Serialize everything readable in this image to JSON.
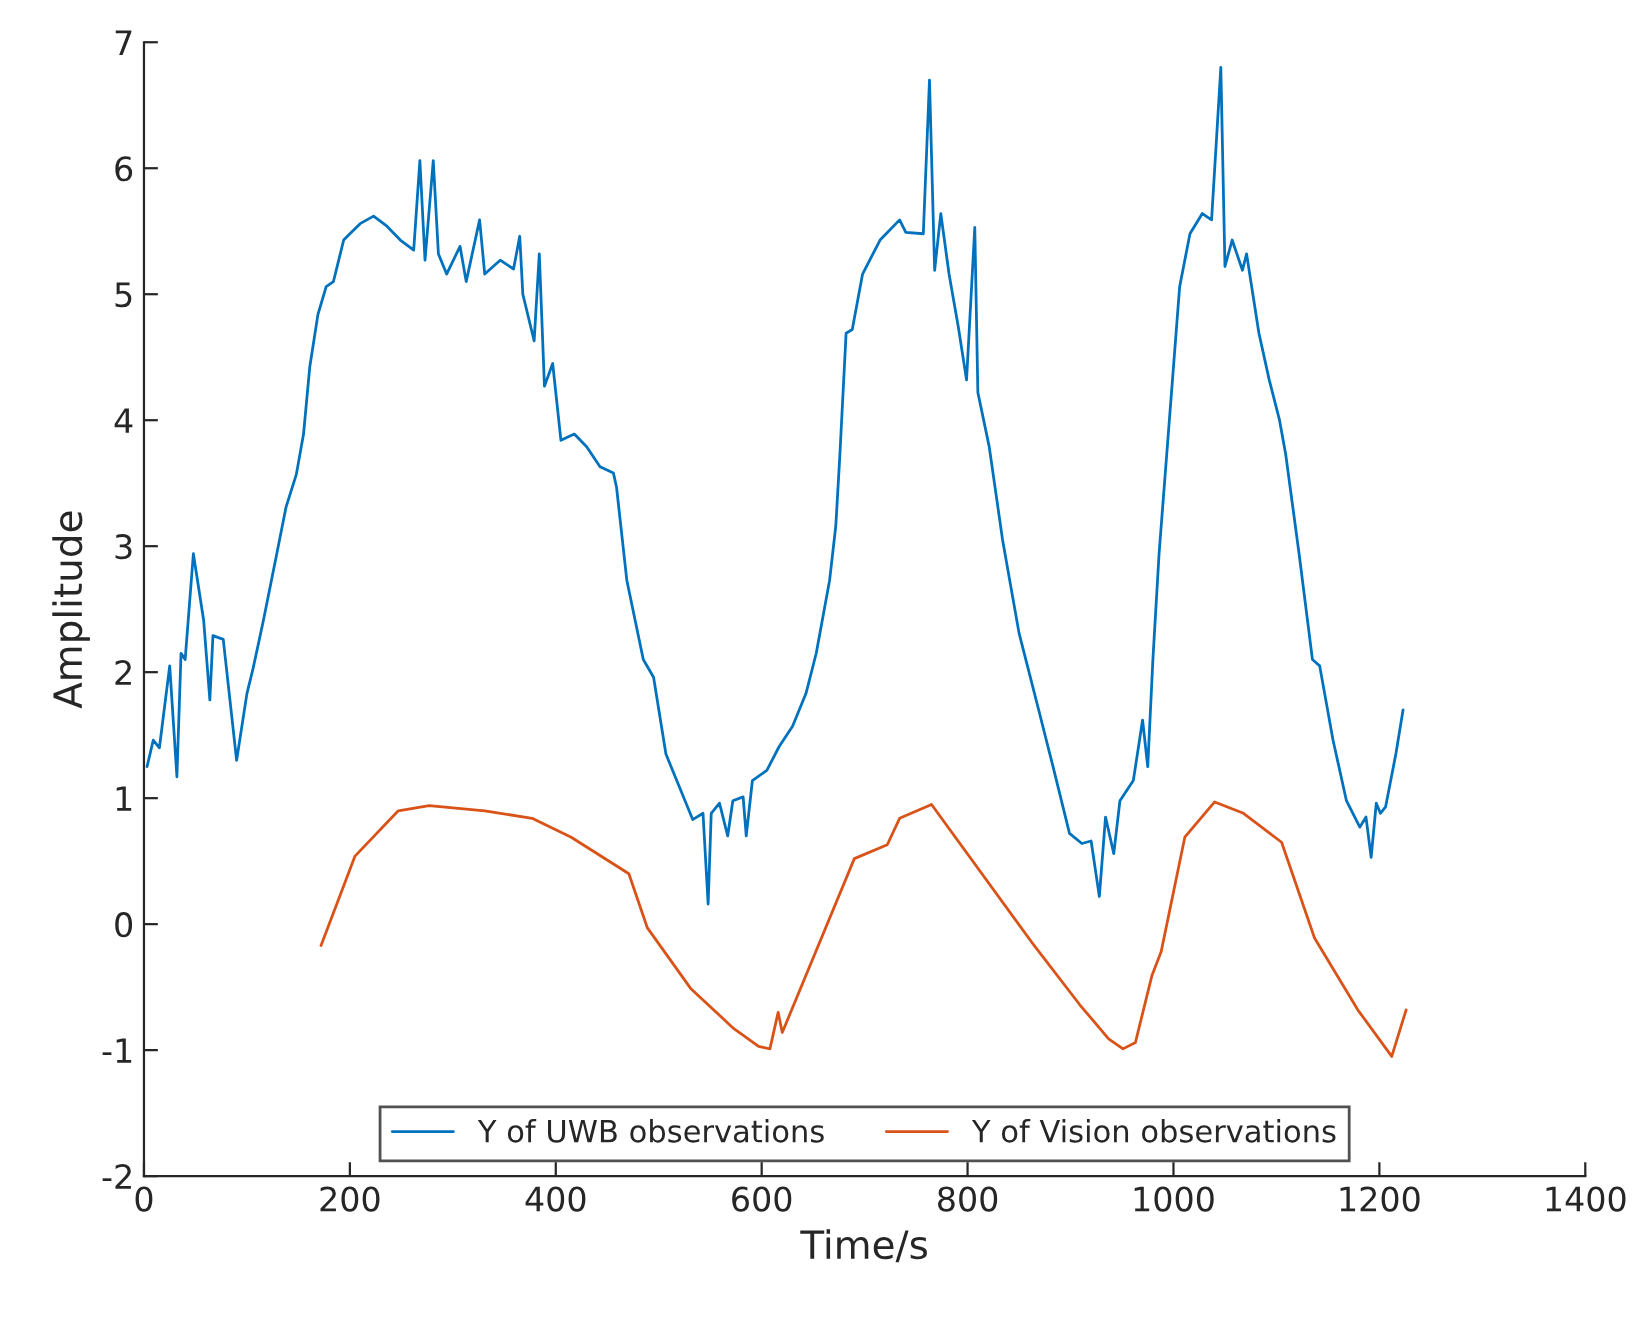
{
  "chart_data": {
    "type": "line",
    "xlabel": "Time/s",
    "ylabel": "Amplitude",
    "xlim": [
      0,
      1400
    ],
    "xticks": [
      0,
      200,
      400,
      600,
      800,
      1000,
      1200,
      1400
    ],
    "ylim": [
      -2,
      7
    ],
    "yticks": [
      -2,
      -1,
      0,
      1,
      2,
      3,
      4,
      5,
      6,
      7
    ],
    "grid": false,
    "legend": "bottom",
    "line_style": "solid",
    "marker": "none",
    "series": [
      {
        "name": "Y of UWB observations",
        "color": "#0072bd",
        "x": [
          3,
          9,
          15,
          25,
          32,
          36,
          40,
          48,
          58,
          64,
          67,
          77,
          90,
          100,
          106,
          116,
          129,
          138,
          148,
          155,
          161,
          169,
          177,
          184,
          194,
          200,
          210,
          223,
          236,
          249,
          262,
          268,
          273,
          281,
          286,
          294,
          307,
          313,
          326,
          331,
          346,
          359,
          365,
          368,
          379,
          384,
          389,
          397,
          405,
          418,
          430,
          443,
          456,
          459,
          469,
          485,
          495,
          507,
          520,
          533,
          543,
          548,
          551,
          559,
          567,
          572,
          582,
          585,
          591,
          605,
          617,
          630,
          643,
          653,
          666,
          672,
          676,
          682,
          688,
          698,
          715,
          734,
          740,
          757,
          763,
          768,
          774,
          782,
          791,
          799,
          807,
          810,
          821,
          834,
          850,
          860,
          870,
          883,
          899,
          911,
          920,
          928,
          934,
          942,
          948,
          961,
          970,
          975,
          980,
          986,
          996,
          1006,
          1016,
          1028,
          1037,
          1046,
          1050,
          1057,
          1067,
          1071,
          1083,
          1093,
          1103,
          1109,
          1122,
          1135,
          1142,
          1155,
          1168,
          1181,
          1187,
          1192,
          1197,
          1201,
          1206,
          1216,
          1223
        ],
        "values": [
          1.25,
          1.46,
          1.4,
          2.05,
          1.17,
          2.15,
          2.1,
          2.94,
          2.41,
          1.78,
          2.29,
          2.26,
          1.3,
          1.83,
          2.03,
          2.41,
          2.94,
          3.31,
          3.57,
          3.89,
          4.42,
          4.84,
          5.06,
          5.1,
          5.43,
          5.48,
          5.56,
          5.62,
          5.54,
          5.43,
          5.35,
          6.06,
          5.27,
          6.06,
          5.32,
          5.16,
          5.38,
          5.1,
          5.59,
          5.16,
          5.27,
          5.2,
          5.46,
          5.0,
          4.63,
          5.32,
          4.27,
          4.45,
          3.84,
          3.89,
          3.79,
          3.63,
          3.58,
          3.47,
          2.73,
          2.1,
          1.96,
          1.35,
          1.09,
          0.83,
          0.88,
          0.16,
          0.88,
          0.96,
          0.7,
          0.98,
          1.01,
          0.7,
          1.14,
          1.22,
          1.41,
          1.57,
          1.83,
          2.15,
          2.73,
          3.16,
          3.73,
          4.69,
          4.72,
          5.16,
          5.43,
          5.59,
          5.49,
          5.48,
          6.7,
          5.19,
          5.64,
          5.16,
          4.74,
          4.32,
          5.53,
          4.22,
          3.79,
          3.05,
          2.31,
          1.99,
          1.67,
          1.25,
          0.72,
          0.64,
          0.66,
          0.22,
          0.85,
          0.56,
          0.98,
          1.14,
          1.62,
          1.25,
          2.1,
          2.94,
          4.0,
          5.06,
          5.48,
          5.64,
          5.59,
          6.8,
          5.22,
          5.43,
          5.19,
          5.32,
          4.69,
          4.32,
          4.0,
          3.73,
          2.94,
          2.1,
          2.05,
          1.46,
          0.98,
          0.77,
          0.85,
          0.53,
          0.96,
          0.88,
          0.93,
          1.35,
          1.7
        ]
      },
      {
        "name": "Y of Vision observations",
        "color": "#d95319",
        "x": [
          172,
          205,
          247,
          277,
          331,
          377,
          415,
          471,
          489,
          531,
          573,
          597,
          608,
          616,
          620,
          690,
          722,
          734,
          765,
          862,
          909,
          937,
          951,
          963,
          979,
          988,
          1011,
          1040,
          1068,
          1105,
          1137,
          1179,
          1212,
          1226
        ],
        "values": [
          -0.17,
          0.54,
          0.9,
          0.94,
          0.9,
          0.84,
          0.69,
          0.4,
          -0.03,
          -0.51,
          -0.83,
          -0.97,
          -0.99,
          -0.7,
          -0.86,
          0.52,
          0.63,
          0.84,
          0.95,
          -0.14,
          -0.64,
          -0.91,
          -0.99,
          -0.94,
          -0.41,
          -0.22,
          0.69,
          0.97,
          0.88,
          0.65,
          -0.11,
          -0.68,
          -1.05,
          -0.68
        ]
      }
    ]
  }
}
